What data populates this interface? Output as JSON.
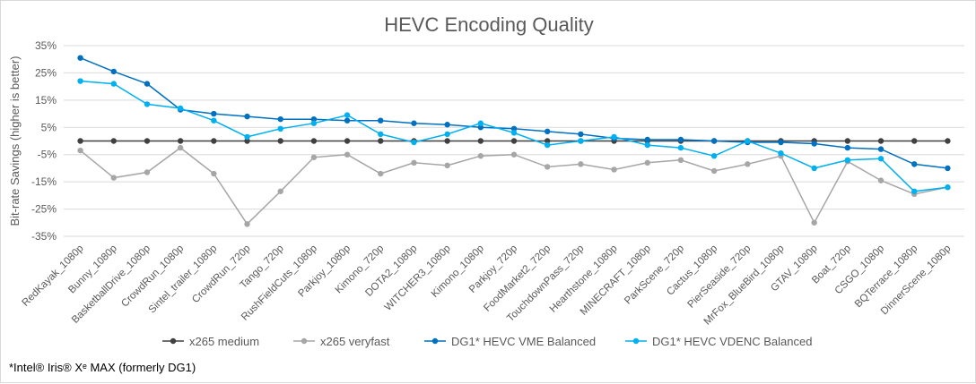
{
  "chart_data": {
    "type": "line",
    "title": "HEVC Encoding Quality",
    "ylabel": "Bit-rate Savings (higher is better)",
    "xlabel": "",
    "ylim": [
      -35,
      35
    ],
    "yticks": [
      35,
      25,
      15,
      5,
      -5,
      -15,
      -25,
      -35
    ],
    "ytick_labels": [
      "35%",
      "25%",
      "15%",
      "5%",
      "-5%",
      "-15%",
      "-25%",
      "-35%"
    ],
    "grid": true,
    "legend_position": "bottom",
    "categories": [
      "RedKayak_1080p",
      "Bunny_1080p",
      "BasketballDrive_1080p",
      "CrowdRun_1080p",
      "Sintel_trailer_1080p",
      "CrowdRun_720p",
      "Tango_720p",
      "RushFieldCuts_1080p",
      "Parkjoy_1080p",
      "Kimono_720p",
      "DOTA2_1080p",
      "WITCHER3_1080p",
      "Kimono_1080p",
      "Parkjoy_720p",
      "FoodMarket2_720p",
      "TouchdownPass_720p",
      "Hearthstone_1080p",
      "MINECRAFT_1080p",
      "ParkScene_720p",
      "Cactus_1080p",
      "PierSeaside_720p",
      "MrFox_BlueBird_1080p",
      "GTAV_1080p",
      "Boat_720p",
      "CSGO_1080p",
      "BQTerrace_1080p",
      "DinnerScene_1080p"
    ],
    "series": [
      {
        "name": "x265 medium",
        "color": "#404040",
        "values": [
          0,
          0,
          0,
          0,
          0,
          0,
          0,
          0,
          0,
          0,
          0,
          0,
          0,
          0,
          0,
          0,
          0,
          0,
          0,
          0,
          0,
          0,
          0,
          0,
          0,
          0,
          0
        ]
      },
      {
        "name": "x265 veryfast",
        "color": "#a6a6a6",
        "values": [
          -3.5,
          -13.5,
          -11.5,
          -2.5,
          -12,
          -30.5,
          -18.5,
          -6,
          -5,
          -12,
          -8,
          -9,
          -5.5,
          -5,
          -9.5,
          -8.5,
          -10.5,
          -8,
          -7,
          -11,
          -8.5,
          -5.5,
          -30,
          -7.5,
          -14.5,
          -19.5,
          -17
        ]
      },
      {
        "name": "DG1* HEVC VME Balanced",
        "color": "#0070c0",
        "values": [
          30.5,
          25.5,
          21,
          11.5,
          10,
          9,
          8,
          8,
          7.5,
          7.5,
          6.5,
          6,
          5,
          4.5,
          3.5,
          2.5,
          1,
          0.5,
          0.5,
          0,
          -0.5,
          -0.5,
          -1,
          -2.5,
          -3,
          -8.5,
          -10
        ]
      },
      {
        "name": "DG1* HEVC VDENC Balanced",
        "color": "#00b0f0",
        "values": [
          22,
          21,
          13.5,
          12,
          7.5,
          1.5,
          4.5,
          6.5,
          9.5,
          2.5,
          -0.5,
          2.5,
          6.5,
          3,
          -1.5,
          0,
          1.5,
          -1.5,
          -2.5,
          -5.5,
          0,
          -4.5,
          -10,
          -7,
          -6.5,
          -18.5,
          -17
        ]
      }
    ]
  },
  "footnote": "*Intel® Iris® Xᵉ MAX (formerly DG1)"
}
